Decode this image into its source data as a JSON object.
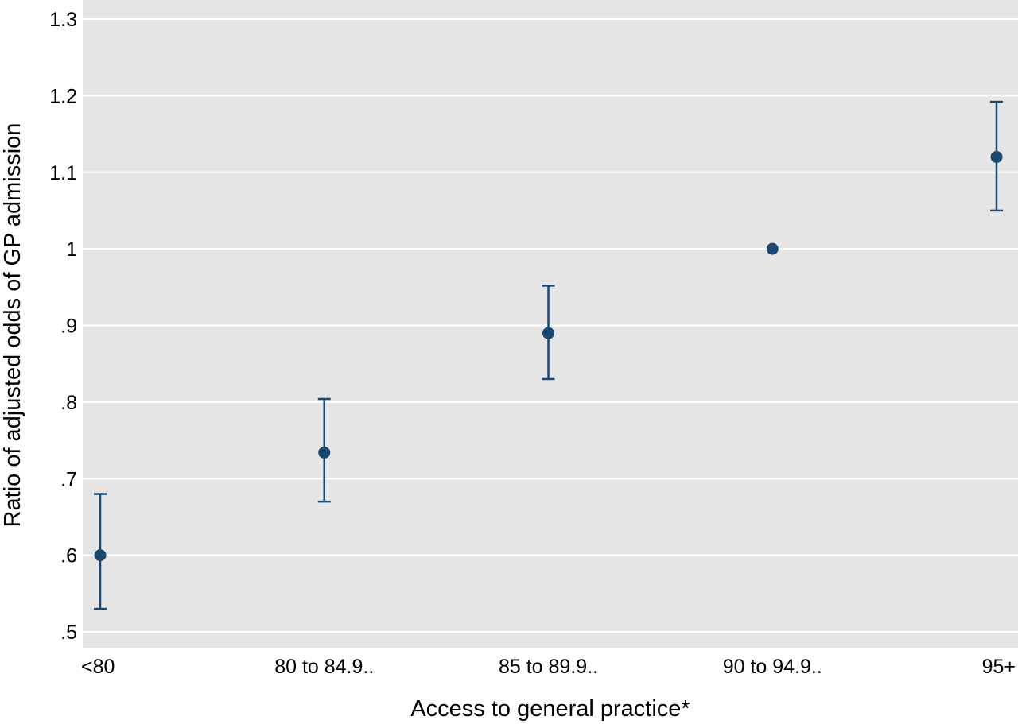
{
  "chart_data": {
    "type": "scatter",
    "title": "",
    "xlabel": "Access to general practice*",
    "ylabel": "Ratio of adjusted odds of GP admission",
    "categories": [
      "<80",
      "80 to 84.9..",
      "85 to 89.9..",
      "90 to 94.9..",
      "95+"
    ],
    "series": [
      {
        "values": [
          0.6,
          0.734,
          0.89,
          1.0,
          1.12
        ],
        "ci_lower": [
          0.53,
          0.67,
          0.83,
          1.0,
          1.05
        ],
        "ci_upper": [
          0.68,
          0.804,
          0.952,
          1.0,
          1.192
        ]
      }
    ],
    "ylim": [
      0.5,
      1.3
    ],
    "yticks": [
      0.5,
      0.6,
      0.7,
      0.8,
      0.9,
      1.0,
      1.1,
      1.2,
      1.3
    ],
    "ytick_labels": [
      ".5",
      ".6",
      ".7",
      ".8",
      ".9",
      "1",
      "1.1",
      "1.2",
      "1.3"
    ],
    "grid": true,
    "legend": "none",
    "colors": {
      "plot_background": "#e5e5e5",
      "gridline": "#ffffff",
      "marker": "#1a476f",
      "errorbar": "#1a476f"
    }
  }
}
